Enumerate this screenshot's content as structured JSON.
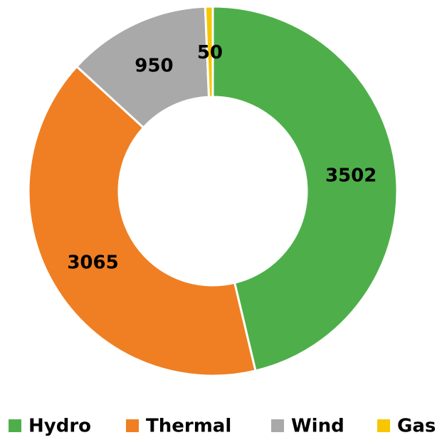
{
  "chart_data": {
    "type": "donut",
    "categories": [
      "Hydro",
      "Thermal",
      "Wind",
      "Gas"
    ],
    "values": [
      3502,
      3065,
      950,
      50
    ],
    "colors": [
      "#4eaf4a",
      "#ef7f22",
      "#a9a9a9",
      "#f7c600"
    ],
    "legend": "bottom"
  }
}
